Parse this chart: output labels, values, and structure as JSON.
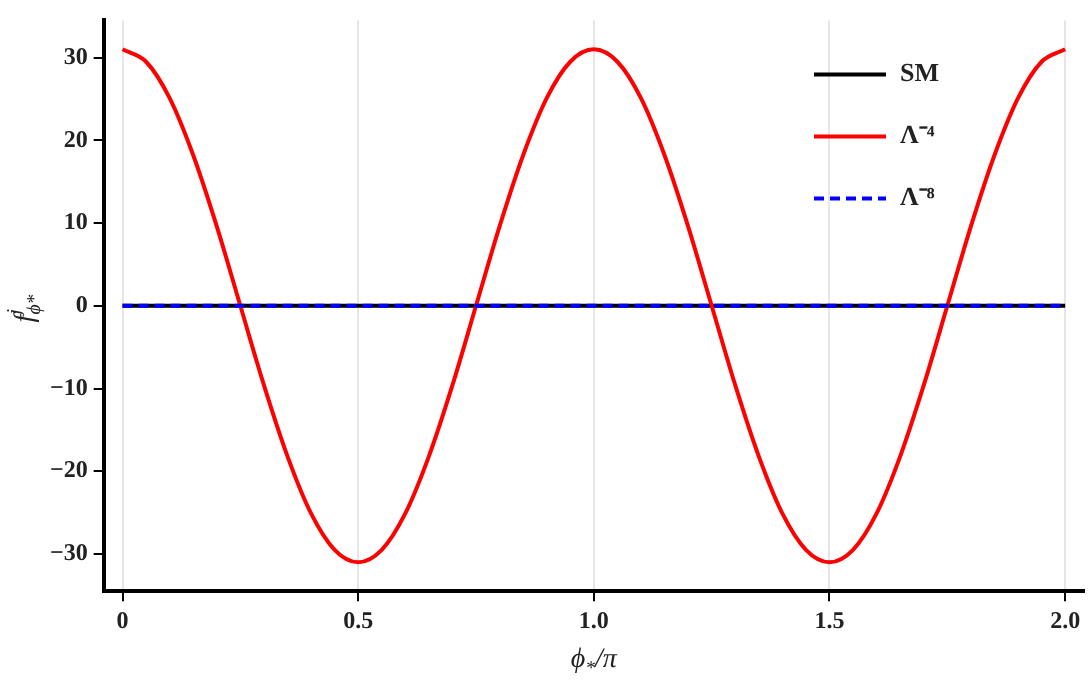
{
  "chart_data": {
    "type": "line",
    "xlabel": "ϕ$_{*}$/π",
    "ylabel": "f$_{ϕ*}$$^{j}$",
    "x": [
      0,
      0.05,
      0.1,
      0.15,
      0.2,
      0.25,
      0.3,
      0.35,
      0.4,
      0.45,
      0.5,
      0.55,
      0.6,
      0.65,
      0.7,
      0.75,
      0.8,
      0.85,
      0.9,
      0.95,
      1,
      1.05,
      1.1,
      1.15,
      1.2,
      1.25,
      1.3,
      1.35,
      1.4,
      1.45,
      1.5,
      1.55,
      1.6,
      1.65,
      1.7,
      1.75,
      1.8,
      1.85,
      1.9,
      1.95,
      2
    ],
    "series": [
      {
        "name": "SM",
        "color": "#000000",
        "line_style": "solid",
        "values": [
          0,
          0,
          0,
          0,
          0,
          0,
          0,
          0,
          0,
          0,
          0,
          0,
          0,
          0,
          0,
          0,
          0,
          0,
          0,
          0,
          0,
          0,
          0,
          0,
          0,
          0,
          0,
          0,
          0,
          0,
          0,
          0,
          0,
          0,
          0,
          0,
          0,
          0,
          0,
          0,
          0
        ]
      },
      {
        "name": "Λ⁻⁴",
        "color": "#ff0000",
        "line_style": "solid",
        "values": [
          31,
          29.5,
          25.1,
          18.2,
          9.6,
          0,
          -9.6,
          -18.2,
          -25.1,
          -29.5,
          -31,
          -29.5,
          -25.1,
          -18.2,
          -9.6,
          0,
          9.6,
          18.2,
          25.1,
          29.5,
          31,
          29.5,
          25.1,
          18.2,
          9.6,
          0,
          -9.6,
          -18.2,
          -25.1,
          -29.5,
          -31,
          -29.5,
          -25.1,
          -18.2,
          -9.6,
          0,
          9.6,
          18.2,
          25.1,
          29.5,
          31
        ]
      },
      {
        "name": "Λ⁻⁸",
        "color": "#0000ff",
        "line_style": "dashed",
        "values": [
          0,
          0,
          0,
          0,
          0,
          0,
          0,
          0,
          0,
          0,
          0,
          0,
          0,
          0,
          0,
          0,
          0,
          0,
          0,
          0,
          0,
          0,
          0,
          0,
          0,
          0,
          0,
          0,
          0,
          0,
          0,
          0,
          0,
          0,
          0,
          0,
          0,
          0,
          0,
          0,
          0
        ]
      }
    ],
    "xlim": [
      -0.04,
      2.04
    ],
    "xticks": [
      0,
      {
        "value": 0.5,
        "label": "0.5"
      },
      {
        "value": 1,
        "label": "1.0"
      },
      {
        "value": 1.5,
        "label": "1.5"
      },
      {
        "value": 2,
        "label": "2.0"
      }
    ],
    "ylim": [
      -34.5,
      34.5
    ],
    "yticks": [
      -30,
      -20,
      -10,
      0,
      10,
      20,
      30
    ],
    "grid": "x",
    "legend": "top right",
    "marker": "none"
  }
}
